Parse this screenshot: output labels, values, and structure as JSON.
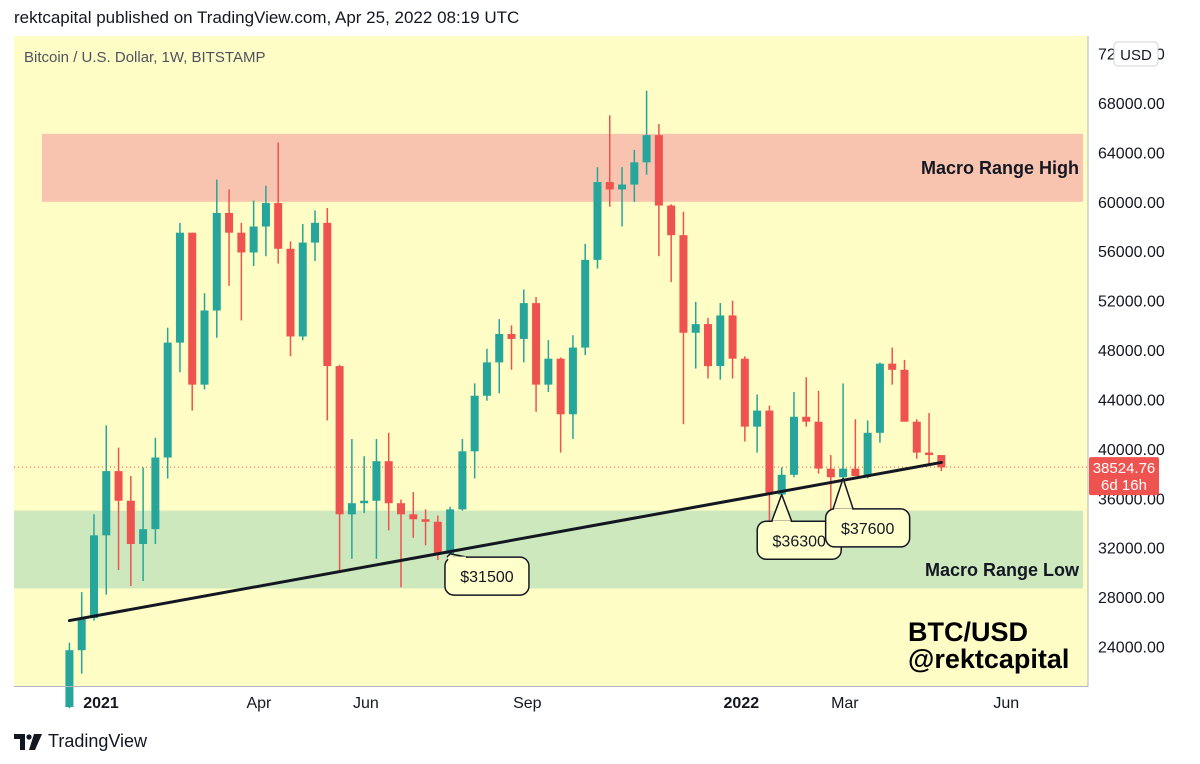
{
  "header": {
    "published_line": "rektcapital published on TradingView.com, Apr 25, 2022 08:19 UTC"
  },
  "chart_data": {
    "type": "candlestick",
    "symbol_line": "Bitcoin / U.S. Dollar, 1W, BITSTAMP",
    "currency_button": "USD",
    "y_axis": {
      "range": [
        20000,
        72000
      ],
      "tick_values": [
        24000,
        28000,
        32000,
        36000,
        40000,
        44000,
        48000,
        52000,
        56000,
        60000,
        64000,
        68000,
        72000
      ],
      "tick_labels": [
        "24000.00",
        "28000.00",
        "32000.00",
        "36000.00",
        "40000.00",
        "44000.00",
        "48000.00",
        "52000.00",
        "56000.00",
        "60000.00",
        "64000.00",
        "68000.00",
        "72000.00"
      ]
    },
    "x_axis": {
      "ticks": [
        {
          "label": "2021",
          "date": "2021-01-01",
          "bold": true
        },
        {
          "label": "Apr",
          "date": "2021-04-01",
          "bold": false
        },
        {
          "label": "Jun",
          "date": "2021-06-01",
          "bold": false
        },
        {
          "label": "Sep",
          "date": "2021-09-01",
          "bold": false
        },
        {
          "label": "2022",
          "date": "2022-01-01",
          "bold": true
        },
        {
          "label": "Mar",
          "date": "2022-03-01",
          "bold": false
        },
        {
          "label": "Jun",
          "date": "2022-06-01",
          "bold": false
        }
      ]
    },
    "colors": {
      "up": "#26a69a",
      "down": "#ef5350",
      "background": "#fefdc6",
      "resistance_zone": "#f8c4b0",
      "support_zone": "#cde8bd",
      "trendline": "#131722",
      "price_label": "#ef5350"
    },
    "zones": [
      {
        "name": "Macro Range High",
        "from": 60000,
        "to": 65500,
        "label": "Macro Range High"
      },
      {
        "name": "Macro Range Low",
        "from": 28700,
        "to": 35000,
        "label": "Macro Range Low"
      }
    ],
    "trendline": {
      "from": {
        "date": "2020-12-14",
        "price": 26100
      },
      "to": {
        "date": "2022-04-25",
        "price": 38900
      }
    },
    "annotations": [
      {
        "text": "$31500",
        "point": {
          "date": "2021-07-19",
          "price": 31500
        },
        "box": {
          "date": "2021-08-09",
          "price": 29700
        }
      },
      {
        "text": "$36300",
        "point": {
          "date": "2022-01-24",
          "price": 36300
        },
        "box": {
          "date": "2022-02-03",
          "price": 32600
        }
      },
      {
        "text": "$37600",
        "point": {
          "date": "2022-02-28",
          "price": 37600
        },
        "box": {
          "date": "2022-03-14",
          "price": 33600
        }
      }
    ],
    "current_price": {
      "value": 38524.76,
      "label": "38524.76",
      "countdown": "6d 16h"
    },
    "watermark": {
      "line1": "BTC/USD",
      "line2": "@rektcapital"
    },
    "candles": [
      {
        "date": "2020-12-14",
        "o": 19100,
        "h": 24300,
        "l": 19000,
        "c": 23700
      },
      {
        "date": "2020-12-21",
        "o": 23700,
        "h": 28400,
        "l": 21800,
        "c": 26300
      },
      {
        "date": "2020-12-28",
        "o": 26300,
        "h": 34700,
        "l": 26100,
        "c": 33000
      },
      {
        "date": "2021-01-04",
        "o": 33000,
        "h": 41900,
        "l": 28200,
        "c": 38200
      },
      {
        "date": "2021-01-11",
        "o": 38200,
        "h": 40100,
        "l": 30200,
        "c": 35800
      },
      {
        "date": "2021-01-18",
        "o": 35800,
        "h": 37800,
        "l": 28900,
        "c": 32300
      },
      {
        "date": "2021-01-25",
        "o": 32300,
        "h": 38500,
        "l": 29300,
        "c": 33500
      },
      {
        "date": "2021-02-01",
        "o": 33500,
        "h": 40900,
        "l": 32300,
        "c": 39300
      },
      {
        "date": "2021-02-08",
        "o": 39300,
        "h": 49800,
        "l": 37600,
        "c": 48600
      },
      {
        "date": "2021-02-15",
        "o": 48600,
        "h": 58300,
        "l": 46200,
        "c": 57500
      },
      {
        "date": "2021-02-22",
        "o": 57500,
        "h": 57500,
        "l": 43100,
        "c": 45200
      },
      {
        "date": "2021-03-01",
        "o": 45200,
        "h": 52600,
        "l": 44800,
        "c": 51200
      },
      {
        "date": "2021-03-08",
        "o": 51200,
        "h": 61800,
        "l": 49000,
        "c": 59100
      },
      {
        "date": "2021-03-15",
        "o": 59100,
        "h": 61000,
        "l": 53200,
        "c": 57500
      },
      {
        "date": "2021-03-22",
        "o": 57500,
        "h": 58300,
        "l": 50400,
        "c": 55900
      },
      {
        "date": "2021-03-29",
        "o": 55900,
        "h": 60100,
        "l": 54800,
        "c": 58000
      },
      {
        "date": "2021-04-05",
        "o": 58000,
        "h": 61300,
        "l": 55600,
        "c": 59900
      },
      {
        "date": "2021-04-12",
        "o": 59900,
        "h": 64800,
        "l": 55000,
        "c": 56200
      },
      {
        "date": "2021-04-19",
        "o": 56200,
        "h": 56800,
        "l": 47500,
        "c": 49100
      },
      {
        "date": "2021-04-26",
        "o": 49100,
        "h": 58200,
        "l": 48800,
        "c": 56700
      },
      {
        "date": "2021-05-03",
        "o": 56700,
        "h": 59300,
        "l": 55200,
        "c": 58300
      },
      {
        "date": "2021-05-10",
        "o": 58300,
        "h": 59500,
        "l": 42300,
        "c": 46700
      },
      {
        "date": "2021-05-17",
        "o": 46700,
        "h": 46800,
        "l": 30100,
        "c": 34700
      },
      {
        "date": "2021-05-24",
        "o": 34700,
        "h": 40800,
        "l": 31100,
        "c": 35600
      },
      {
        "date": "2021-05-31",
        "o": 35600,
        "h": 39400,
        "l": 34800,
        "c": 35800
      },
      {
        "date": "2021-06-07",
        "o": 35800,
        "h": 40800,
        "l": 31100,
        "c": 39000
      },
      {
        "date": "2021-06-14",
        "o": 39000,
        "h": 41300,
        "l": 33400,
        "c": 35600
      },
      {
        "date": "2021-06-21",
        "o": 35600,
        "h": 35900,
        "l": 28800,
        "c": 34700
      },
      {
        "date": "2021-06-28",
        "o": 34700,
        "h": 36500,
        "l": 32800,
        "c": 34300
      },
      {
        "date": "2021-07-05",
        "o": 34300,
        "h": 35100,
        "l": 32200,
        "c": 34100
      },
      {
        "date": "2021-07-12",
        "o": 34100,
        "h": 34600,
        "l": 31000,
        "c": 31500
      },
      {
        "date": "2021-07-19",
        "o": 31500,
        "h": 35300,
        "l": 29500,
        "c": 35100
      },
      {
        "date": "2021-07-26",
        "o": 35100,
        "h": 40800,
        "l": 35000,
        "c": 39800
      },
      {
        "date": "2021-08-02",
        "o": 39800,
        "h": 45300,
        "l": 37600,
        "c": 44300
      },
      {
        "date": "2021-08-09",
        "o": 44300,
        "h": 48100,
        "l": 43900,
        "c": 47000
      },
      {
        "date": "2021-08-16",
        "o": 47000,
        "h": 50500,
        "l": 44500,
        "c": 49300
      },
      {
        "date": "2021-08-23",
        "o": 49300,
        "h": 50000,
        "l": 46400,
        "c": 48900
      },
      {
        "date": "2021-08-30",
        "o": 48900,
        "h": 52900,
        "l": 47000,
        "c": 51800
      },
      {
        "date": "2021-09-06",
        "o": 51800,
        "h": 52300,
        "l": 43000,
        "c": 45200
      },
      {
        "date": "2021-09-13",
        "o": 45200,
        "h": 48800,
        "l": 44600,
        "c": 47300
      },
      {
        "date": "2021-09-20",
        "o": 47300,
        "h": 47400,
        "l": 39700,
        "c": 42800
      },
      {
        "date": "2021-09-27",
        "o": 42800,
        "h": 49200,
        "l": 40800,
        "c": 48200
      },
      {
        "date": "2021-10-04",
        "o": 48200,
        "h": 56600,
        "l": 47600,
        "c": 55300
      },
      {
        "date": "2021-10-11",
        "o": 55300,
        "h": 62800,
        "l": 54600,
        "c": 61600
      },
      {
        "date": "2021-10-18",
        "o": 61600,
        "h": 67000,
        "l": 59600,
        "c": 61000
      },
      {
        "date": "2021-10-25",
        "o": 61000,
        "h": 62800,
        "l": 58000,
        "c": 61400
      },
      {
        "date": "2021-11-01",
        "o": 61400,
        "h": 64200,
        "l": 60000,
        "c": 63200
      },
      {
        "date": "2021-11-08",
        "o": 63200,
        "h": 69000,
        "l": 62200,
        "c": 65400
      },
      {
        "date": "2021-11-15",
        "o": 65400,
        "h": 66300,
        "l": 55600,
        "c": 59700
      },
      {
        "date": "2021-11-22",
        "o": 59700,
        "h": 59800,
        "l": 53500,
        "c": 57300
      },
      {
        "date": "2021-11-29",
        "o": 57300,
        "h": 59200,
        "l": 42000,
        "c": 49400
      },
      {
        "date": "2021-12-06",
        "o": 49400,
        "h": 51900,
        "l": 46500,
        "c": 50100
      },
      {
        "date": "2021-12-13",
        "o": 50100,
        "h": 50600,
        "l": 45700,
        "c": 46700
      },
      {
        "date": "2021-12-20",
        "o": 46700,
        "h": 51800,
        "l": 45600,
        "c": 50800
      },
      {
        "date": "2021-12-27",
        "o": 50800,
        "h": 52000,
        "l": 45700,
        "c": 47300
      },
      {
        "date": "2022-01-03",
        "o": 47300,
        "h": 47500,
        "l": 40600,
        "c": 41800
      },
      {
        "date": "2022-01-10",
        "o": 41800,
        "h": 44400,
        "l": 39700,
        "c": 43100
      },
      {
        "date": "2022-01-17",
        "o": 43100,
        "h": 43500,
        "l": 34000,
        "c": 36300
      },
      {
        "date": "2022-01-24",
        "o": 36300,
        "h": 38500,
        "l": 32900,
        "c": 37900
      },
      {
        "date": "2022-01-31",
        "o": 37900,
        "h": 44600,
        "l": 37700,
        "c": 42600
      },
      {
        "date": "2022-02-07",
        "o": 42600,
        "h": 45800,
        "l": 41800,
        "c": 42200
      },
      {
        "date": "2022-02-14",
        "o": 42200,
        "h": 44700,
        "l": 38000,
        "c": 38400
      },
      {
        "date": "2022-02-21",
        "o": 38400,
        "h": 39500,
        "l": 34400,
        "c": 37700
      },
      {
        "date": "2022-02-28",
        "o": 37700,
        "h": 45300,
        "l": 37500,
        "c": 38400
      },
      {
        "date": "2022-03-07",
        "o": 38400,
        "h": 42400,
        "l": 37900,
        "c": 37800
      },
      {
        "date": "2022-03-14",
        "o": 37800,
        "h": 42300,
        "l": 37600,
        "c": 41300
      },
      {
        "date": "2022-03-21",
        "o": 41300,
        "h": 47000,
        "l": 40500,
        "c": 46900
      },
      {
        "date": "2022-03-28",
        "o": 46900,
        "h": 48200,
        "l": 45200,
        "c": 46400
      },
      {
        "date": "2022-04-04",
        "o": 46400,
        "h": 47200,
        "l": 42200,
        "c": 42200
      },
      {
        "date": "2022-04-11",
        "o": 42200,
        "h": 42400,
        "l": 39200,
        "c": 39700
      },
      {
        "date": "2022-04-18",
        "o": 39700,
        "h": 42900,
        "l": 38600,
        "c": 39500
      },
      {
        "date": "2022-04-25",
        "o": 39500,
        "h": 39500,
        "l": 38200,
        "c": 38500
      }
    ]
  },
  "footer": {
    "brand": "TradingView"
  }
}
